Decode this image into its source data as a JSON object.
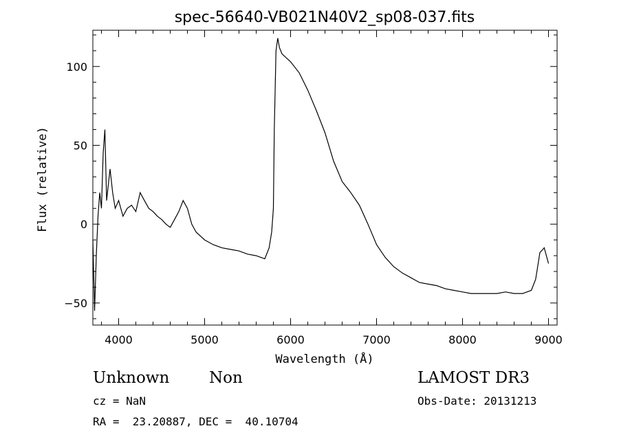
{
  "chart_data": {
    "type": "line",
    "title": "spec-56640-VB021N40V2_sp08-037.fits",
    "xlabel": "Wavelength (Å)",
    "ylabel": "Flux (relative)",
    "xlim": [
      3700,
      9100
    ],
    "ylim": [
      -64,
      123
    ],
    "xticks": [
      4000,
      5000,
      6000,
      7000,
      8000,
      9000
    ],
    "yticks": [
      -50,
      0,
      50,
      100
    ],
    "x_minor_step": 200,
    "y_minor_step": 10,
    "grid": false,
    "series": [
      {
        "color": "#000000",
        "points": [
          [
            3700,
            -10
          ],
          [
            3720,
            -55
          ],
          [
            3740,
            -20
          ],
          [
            3760,
            5
          ],
          [
            3780,
            20
          ],
          [
            3800,
            10
          ],
          [
            3820,
            45
          ],
          [
            3840,
            60
          ],
          [
            3860,
            15
          ],
          [
            3880,
            25
          ],
          [
            3900,
            35
          ],
          [
            3930,
            20
          ],
          [
            3960,
            10
          ],
          [
            4000,
            15
          ],
          [
            4050,
            5
          ],
          [
            4100,
            10
          ],
          [
            4150,
            12
          ],
          [
            4200,
            8
          ],
          [
            4250,
            20
          ],
          [
            4300,
            15
          ],
          [
            4350,
            10
          ],
          [
            4400,
            8
          ],
          [
            4450,
            5
          ],
          [
            4500,
            3
          ],
          [
            4550,
            0
          ],
          [
            4600,
            -2
          ],
          [
            4650,
            3
          ],
          [
            4700,
            8
          ],
          [
            4750,
            15
          ],
          [
            4800,
            10
          ],
          [
            4850,
            0
          ],
          [
            4900,
            -5
          ],
          [
            5000,
            -10
          ],
          [
            5100,
            -13
          ],
          [
            5200,
            -15
          ],
          [
            5300,
            -16
          ],
          [
            5400,
            -17
          ],
          [
            5500,
            -19
          ],
          [
            5600,
            -20
          ],
          [
            5700,
            -22
          ],
          [
            5750,
            -15
          ],
          [
            5780,
            -5
          ],
          [
            5800,
            10
          ],
          [
            5810,
            60
          ],
          [
            5830,
            110
          ],
          [
            5850,
            118
          ],
          [
            5870,
            112
          ],
          [
            5900,
            108
          ],
          [
            6000,
            103
          ],
          [
            6100,
            96
          ],
          [
            6200,
            85
          ],
          [
            6300,
            72
          ],
          [
            6400,
            58
          ],
          [
            6500,
            40
          ],
          [
            6600,
            27
          ],
          [
            6700,
            20
          ],
          [
            6800,
            12
          ],
          [
            6900,
            0
          ],
          [
            7000,
            -13
          ],
          [
            7100,
            -21
          ],
          [
            7200,
            -27
          ],
          [
            7300,
            -31
          ],
          [
            7400,
            -34
          ],
          [
            7500,
            -37
          ],
          [
            7600,
            -38
          ],
          [
            7700,
            -39
          ],
          [
            7800,
            -41
          ],
          [
            7900,
            -42
          ],
          [
            8000,
            -43
          ],
          [
            8100,
            -44
          ],
          [
            8200,
            -44
          ],
          [
            8300,
            -44
          ],
          [
            8400,
            -44
          ],
          [
            8500,
            -43
          ],
          [
            8600,
            -44
          ],
          [
            8700,
            -44
          ],
          [
            8800,
            -42
          ],
          [
            8850,
            -35
          ],
          [
            8900,
            -18
          ],
          [
            8950,
            -15
          ],
          [
            9000,
            -25
          ]
        ]
      }
    ]
  },
  "info": {
    "object_class": "Unknown",
    "subclass": "Non",
    "survey": "LAMOST DR3",
    "redshift": "cz = NaN",
    "obs_date": "Obs-Date: 20131213",
    "coords": "RA =  23.20887, DEC =  40.10704"
  }
}
